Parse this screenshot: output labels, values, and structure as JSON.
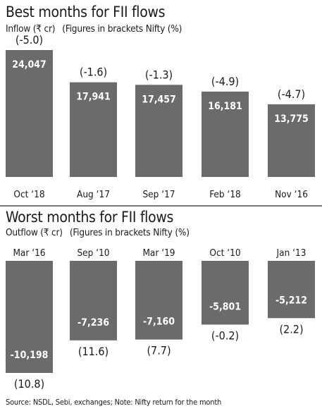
{
  "colors": {
    "bar": "#6b6b6b",
    "value_text": "#ffffff",
    "text": "#1a1a1a"
  },
  "chart_data": [
    {
      "type": "bar",
      "title": "Best months for FII flows",
      "subtitle_left": "Inflow (₹ cr)",
      "subtitle_right": "(Figures in brackets Nifty (%)",
      "categories": [
        "Oct ‘18",
        "Aug ‘17",
        "Sep ‘17",
        "Feb ‘18",
        "Nov ‘16"
      ],
      "values": [
        24047,
        17941,
        17457,
        16181,
        13775
      ],
      "value_labels": [
        "24,047",
        "17,941",
        "17,457",
        "16,181",
        "13,775"
      ],
      "nifty_labels": [
        "(-5.0)",
        "(-1.6)",
        "(-1.3)",
        "(-4.9)",
        "(-4.7)"
      ],
      "nifty_return_pct": [
        -5.0,
        -1.6,
        -1.3,
        -4.9,
        -4.7
      ],
      "ylim": [
        0,
        24047
      ]
    },
    {
      "type": "bar",
      "title": "Worst months for FII flows",
      "subtitle_left": "Outflow  (₹ cr)",
      "subtitle_right": "(Figures in brackets Nifty (%)",
      "categories": [
        "Mar ‘16",
        "Sep ‘10",
        "Mar ‘19",
        "Oct ‘10",
        "Jan ‘13"
      ],
      "values": [
        -10198,
        -7236,
        -7160,
        -5801,
        -5212
      ],
      "value_labels": [
        "-10,198",
        "-7,236",
        "-7,160",
        "-5,801",
        "-5,212"
      ],
      "nifty_labels": [
        "(10.8)",
        "(11.6)",
        "(7.7)",
        "(-0.2)",
        "(2.2)"
      ],
      "nifty_return_pct": [
        10.8,
        11.6,
        7.7,
        -0.2,
        2.2
      ],
      "ylim": [
        -10198,
        0
      ]
    }
  ],
  "source": "Source: NSDL, Sebi, exchanges; Note: Nifty return for the month"
}
